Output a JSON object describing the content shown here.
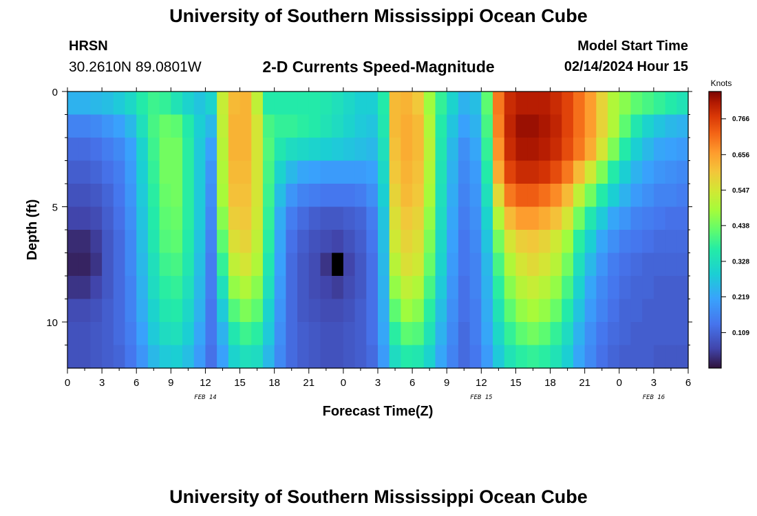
{
  "header": {
    "title": "University of Southern Mississippi Ocean Cube",
    "station": "HRSN",
    "coordinates": "30.2610N  89.0801W",
    "subtitle": "2-D Currents Speed-Magnitude",
    "model_start_label": "Model Start Time",
    "model_start_value": "02/14/2024 Hour 15"
  },
  "footer": {
    "title": "University of Southern Mississippi Ocean Cube"
  },
  "chart_data": {
    "type": "heatmap",
    "title": "2-D Currents Speed-Magnitude",
    "xlabel": "Forecast Time(Z)",
    "ylabel": "Depth (ft)",
    "x_unit": "hours since 2024-02-14 00Z",
    "xlim": [
      0,
      54
    ],
    "ylim": [
      0,
      12
    ],
    "x_ticks": [
      0,
      3,
      6,
      9,
      12,
      15,
      18,
      21,
      24,
      27,
      30,
      33,
      36,
      39,
      42,
      45,
      48,
      51,
      54
    ],
    "x_tick_labels": [
      "0",
      "3",
      "6",
      "9",
      "12",
      "15",
      "18",
      "21",
      "0",
      "3",
      "6",
      "9",
      "12",
      "15",
      "18",
      "21",
      "0",
      "3",
      "6"
    ],
    "y_ticks": [
      0,
      5,
      10
    ],
    "y_tick_labels": [
      "0",
      "5",
      "10"
    ],
    "date_labels": [
      {
        "text": "FEB 14",
        "hour": 12
      },
      {
        "text": "FEB 15",
        "hour": 36
      },
      {
        "text": "FEB 16",
        "hour": 51
      }
    ],
    "colorbar": {
      "label": "Knots",
      "min": 0.0,
      "max": 0.85,
      "ticks": [
        0.109,
        0.219,
        0.328,
        0.438,
        0.547,
        0.656,
        0.766
      ],
      "tick_labels": [
        "0.109",
        "0.219",
        "0.328",
        "0.438",
        "0.547",
        "0.656",
        "0.766"
      ]
    },
    "grid": {
      "depths_ft": [
        0.5,
        1.5,
        2.5,
        3.5,
        4.5,
        5.5,
        6.5,
        7.5,
        8.5,
        9.5,
        10.5,
        11.5
      ],
      "rows": [
        [
          0.24,
          0.24,
          0.25,
          0.26,
          0.28,
          0.31,
          0.36,
          0.39,
          0.38,
          0.34,
          0.3,
          0.27,
          0.3,
          0.53,
          0.62,
          0.63,
          0.52,
          0.36,
          0.36,
          0.36,
          0.36,
          0.36,
          0.35,
          0.33,
          0.31,
          0.29,
          0.29,
          0.36,
          0.62,
          0.63,
          0.6,
          0.48,
          0.38,
          0.3,
          0.24,
          0.26,
          0.42,
          0.7,
          0.79,
          0.81,
          0.81,
          0.81,
          0.79,
          0.76,
          0.71,
          0.66,
          0.58,
          0.5,
          0.46,
          0.42,
          0.4,
          0.38,
          0.36,
          0.34
        ],
        [
          0.16,
          0.16,
          0.17,
          0.19,
          0.21,
          0.25,
          0.33,
          0.4,
          0.43,
          0.42,
          0.36,
          0.29,
          0.25,
          0.52,
          0.63,
          0.63,
          0.55,
          0.4,
          0.38,
          0.38,
          0.37,
          0.36,
          0.34,
          0.32,
          0.3,
          0.28,
          0.27,
          0.35,
          0.62,
          0.64,
          0.62,
          0.5,
          0.36,
          0.27,
          0.21,
          0.24,
          0.4,
          0.69,
          0.8,
          0.83,
          0.83,
          0.82,
          0.8,
          0.76,
          0.71,
          0.66,
          0.58,
          0.5,
          0.42,
          0.35,
          0.3,
          0.27,
          0.25,
          0.24
        ],
        [
          0.12,
          0.12,
          0.13,
          0.15,
          0.17,
          0.21,
          0.3,
          0.39,
          0.44,
          0.44,
          0.37,
          0.28,
          0.21,
          0.51,
          0.63,
          0.63,
          0.55,
          0.41,
          0.35,
          0.32,
          0.31,
          0.3,
          0.29,
          0.28,
          0.27,
          0.26,
          0.25,
          0.33,
          0.61,
          0.64,
          0.62,
          0.51,
          0.35,
          0.25,
          0.18,
          0.22,
          0.38,
          0.67,
          0.79,
          0.82,
          0.82,
          0.81,
          0.79,
          0.75,
          0.7,
          0.64,
          0.55,
          0.45,
          0.36,
          0.29,
          0.25,
          0.22,
          0.21,
          0.2
        ],
        [
          0.1,
          0.1,
          0.11,
          0.13,
          0.15,
          0.2,
          0.29,
          0.38,
          0.44,
          0.44,
          0.37,
          0.28,
          0.19,
          0.5,
          0.62,
          0.62,
          0.55,
          0.4,
          0.3,
          0.25,
          0.22,
          0.21,
          0.2,
          0.2,
          0.2,
          0.2,
          0.21,
          0.31,
          0.6,
          0.63,
          0.61,
          0.5,
          0.34,
          0.24,
          0.17,
          0.2,
          0.36,
          0.64,
          0.76,
          0.79,
          0.79,
          0.78,
          0.75,
          0.7,
          0.62,
          0.54,
          0.45,
          0.36,
          0.29,
          0.24,
          0.21,
          0.19,
          0.18,
          0.17
        ],
        [
          0.08,
          0.08,
          0.09,
          0.11,
          0.14,
          0.19,
          0.28,
          0.37,
          0.43,
          0.44,
          0.37,
          0.28,
          0.18,
          0.49,
          0.61,
          0.61,
          0.55,
          0.39,
          0.26,
          0.19,
          0.16,
          0.15,
          0.14,
          0.14,
          0.14,
          0.15,
          0.18,
          0.29,
          0.58,
          0.62,
          0.6,
          0.49,
          0.33,
          0.23,
          0.16,
          0.19,
          0.33,
          0.57,
          0.7,
          0.73,
          0.73,
          0.71,
          0.68,
          0.62,
          0.52,
          0.44,
          0.36,
          0.29,
          0.24,
          0.2,
          0.18,
          0.16,
          0.16,
          0.15
        ],
        [
          0.06,
          0.06,
          0.07,
          0.1,
          0.13,
          0.18,
          0.27,
          0.36,
          0.42,
          0.43,
          0.37,
          0.28,
          0.17,
          0.46,
          0.59,
          0.6,
          0.54,
          0.38,
          0.23,
          0.15,
          0.12,
          0.1,
          0.09,
          0.09,
          0.1,
          0.11,
          0.15,
          0.27,
          0.56,
          0.6,
          0.58,
          0.47,
          0.32,
          0.22,
          0.15,
          0.18,
          0.3,
          0.5,
          0.62,
          0.66,
          0.66,
          0.64,
          0.61,
          0.55,
          0.44,
          0.35,
          0.28,
          0.22,
          0.19,
          0.16,
          0.15,
          0.14,
          0.13,
          0.13
        ],
        [
          0.03,
          0.03,
          0.05,
          0.09,
          0.12,
          0.17,
          0.26,
          0.35,
          0.41,
          0.42,
          0.36,
          0.27,
          0.16,
          0.42,
          0.56,
          0.58,
          0.52,
          0.37,
          0.22,
          0.13,
          0.1,
          0.08,
          0.07,
          0.06,
          0.08,
          0.1,
          0.14,
          0.26,
          0.54,
          0.58,
          0.56,
          0.45,
          0.31,
          0.21,
          0.14,
          0.17,
          0.27,
          0.44,
          0.55,
          0.59,
          0.6,
          0.58,
          0.54,
          0.48,
          0.37,
          0.29,
          0.22,
          0.18,
          0.15,
          0.14,
          0.13,
          0.12,
          0.12,
          0.12
        ],
        [
          0.02,
          0.02,
          0.04,
          0.09,
          0.12,
          0.17,
          0.25,
          0.33,
          0.39,
          0.4,
          0.35,
          0.26,
          0.15,
          0.38,
          0.52,
          0.55,
          0.5,
          0.35,
          0.21,
          0.12,
          0.09,
          0.07,
          0.04,
          0.0,
          0.06,
          0.09,
          0.13,
          0.25,
          0.51,
          0.56,
          0.54,
          0.43,
          0.3,
          0.2,
          0.14,
          0.16,
          0.25,
          0.4,
          0.5,
          0.55,
          0.57,
          0.55,
          0.51,
          0.44,
          0.33,
          0.25,
          0.19,
          0.15,
          0.13,
          0.12,
          0.11,
          0.11,
          0.11,
          0.11
        ],
        [
          0.04,
          0.04,
          0.06,
          0.09,
          0.12,
          0.16,
          0.24,
          0.32,
          0.37,
          0.38,
          0.33,
          0.25,
          0.15,
          0.33,
          0.47,
          0.5,
          0.46,
          0.33,
          0.2,
          0.12,
          0.09,
          0.07,
          0.06,
          0.05,
          0.07,
          0.09,
          0.13,
          0.24,
          0.47,
          0.52,
          0.5,
          0.4,
          0.28,
          0.19,
          0.13,
          0.16,
          0.24,
          0.37,
          0.46,
          0.51,
          0.53,
          0.51,
          0.47,
          0.4,
          0.3,
          0.22,
          0.17,
          0.14,
          0.12,
          0.11,
          0.11,
          0.1,
          0.1,
          0.1
        ],
        [
          0.07,
          0.07,
          0.08,
          0.1,
          0.12,
          0.16,
          0.23,
          0.3,
          0.35,
          0.36,
          0.31,
          0.24,
          0.14,
          0.28,
          0.41,
          0.45,
          0.42,
          0.3,
          0.19,
          0.12,
          0.09,
          0.08,
          0.07,
          0.07,
          0.08,
          0.1,
          0.13,
          0.23,
          0.42,
          0.48,
          0.46,
          0.37,
          0.26,
          0.18,
          0.13,
          0.15,
          0.23,
          0.34,
          0.42,
          0.47,
          0.49,
          0.47,
          0.43,
          0.36,
          0.27,
          0.2,
          0.16,
          0.13,
          0.11,
          0.11,
          0.1,
          0.1,
          0.1,
          0.1
        ],
        [
          0.08,
          0.08,
          0.09,
          0.1,
          0.12,
          0.15,
          0.21,
          0.28,
          0.32,
          0.33,
          0.29,
          0.22,
          0.14,
          0.24,
          0.35,
          0.39,
          0.37,
          0.28,
          0.18,
          0.12,
          0.1,
          0.09,
          0.08,
          0.08,
          0.09,
          0.1,
          0.13,
          0.22,
          0.37,
          0.42,
          0.41,
          0.34,
          0.24,
          0.17,
          0.12,
          0.15,
          0.22,
          0.31,
          0.38,
          0.42,
          0.44,
          0.42,
          0.38,
          0.32,
          0.24,
          0.18,
          0.14,
          0.12,
          0.11,
          0.1,
          0.1,
          0.1,
          0.1,
          0.1
        ],
        [
          0.08,
          0.08,
          0.09,
          0.1,
          0.11,
          0.14,
          0.19,
          0.25,
          0.28,
          0.29,
          0.26,
          0.2,
          0.13,
          0.21,
          0.3,
          0.33,
          0.32,
          0.25,
          0.17,
          0.12,
          0.1,
          0.09,
          0.08,
          0.08,
          0.09,
          0.1,
          0.12,
          0.2,
          0.32,
          0.36,
          0.35,
          0.3,
          0.22,
          0.16,
          0.12,
          0.14,
          0.2,
          0.28,
          0.34,
          0.37,
          0.38,
          0.37,
          0.34,
          0.29,
          0.22,
          0.17,
          0.13,
          0.11,
          0.1,
          0.1,
          0.1,
          0.09,
          0.09,
          0.09
        ]
      ]
    }
  }
}
